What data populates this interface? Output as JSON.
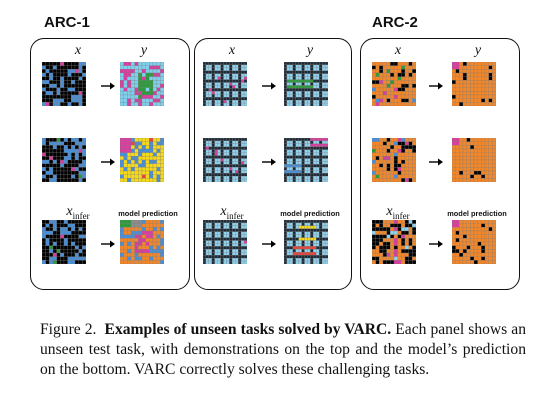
{
  "headers": {
    "arc1": "ARC-1",
    "arc2": "ARC-2"
  },
  "labels": {
    "x": "x",
    "y": "y",
    "x_infer": "x",
    "x_infer_sub": "infer",
    "model_prediction": "model prediction"
  },
  "caption": {
    "fig": "Figure 2.",
    "bold": "Examples of unseen tasks solved by VARC.",
    "rest": "Each panel shows an unseen test task, with demonstrations on the top and the model’s prediction on the bottom. VARC correctly solves these challenging tasks."
  },
  "colors": {
    "black": "#000000",
    "blue": "#4a8fd6",
    "light_blue": "#8fd3f0",
    "green": "#2e9a3e",
    "pink": "#d63f9e",
    "red": "#e8443a",
    "orange": "#f2872a",
    "yellow": "#f5d91a",
    "gray": "#8c8c8c",
    "cyan_bg": "#7fd0ee"
  }
}
